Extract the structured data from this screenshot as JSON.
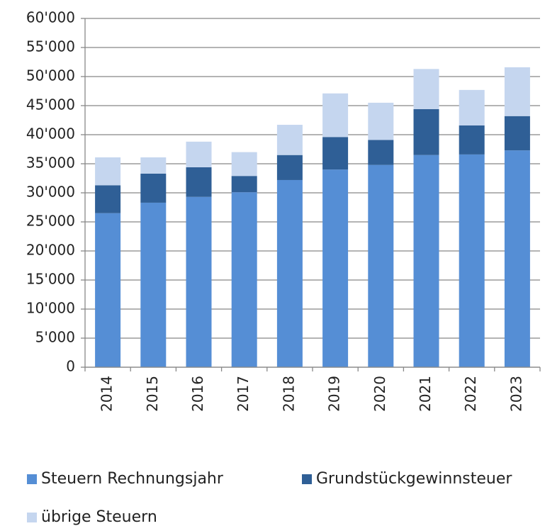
{
  "chart_data": {
    "type": "stacked_bar",
    "categories": [
      "2014",
      "2015",
      "2016",
      "2017",
      "2018",
      "2019",
      "2020",
      "2021",
      "2022",
      "2023"
    ],
    "series": [
      {
        "name": "Steuern Rechnungsjahr",
        "color": "#558ed5",
        "values": [
          26500,
          28300,
          29300,
          30100,
          32200,
          34000,
          34800,
          36500,
          36600,
          37300
        ]
      },
      {
        "name": "Grundstückgewinnsteuer",
        "color": "#2f5f96",
        "values": [
          4800,
          5000,
          5100,
          2800,
          4300,
          5600,
          4300,
          7900,
          5000,
          5900
        ]
      },
      {
        "name": "übrige Steuern",
        "color": "#c5d6ef",
        "values": [
          4800,
          2800,
          4400,
          4100,
          5200,
          7500,
          6400,
          6900,
          6100,
          8400
        ]
      }
    ],
    "ylim": [
      0,
      60000
    ],
    "yticks": [
      0,
      {
        "value": 5000,
        "label": "5'000"
      },
      {
        "value": 10000,
        "label": "10'000"
      },
      {
        "value": 15000,
        "label": "15'000"
      },
      {
        "value": 20000,
        "label": "20'000"
      },
      {
        "value": 25000,
        "label": "25'000"
      },
      {
        "value": 30000,
        "label": "30'000"
      },
      {
        "value": 35000,
        "label": "35'000"
      },
      {
        "value": 40000,
        "label": "40'000"
      },
      {
        "value": 45000,
        "label": "45'000"
      },
      {
        "value": 50000,
        "label": "50'000"
      },
      {
        "value": 55000,
        "label": "55'000"
      },
      {
        "value": 60000,
        "label": "60'000"
      }
    ],
    "grid": true
  }
}
